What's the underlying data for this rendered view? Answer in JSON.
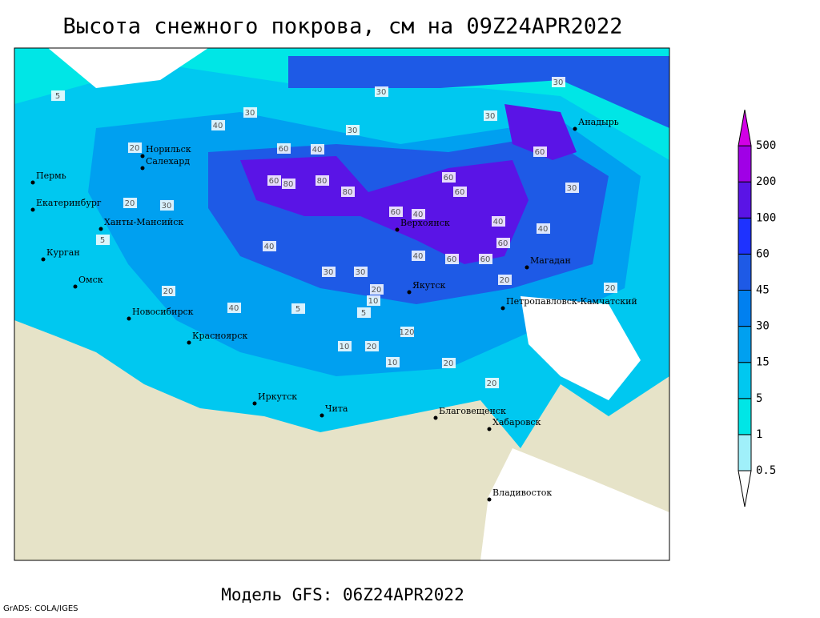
{
  "title": "Высота снежного покрова, см на 09Z24APR2022",
  "subtitle": "Модель GFS: 06Z24APR2022",
  "credit": "GrADS: COLA/IGES",
  "colorbar": {
    "levels": [
      0.5,
      1,
      5,
      15,
      30,
      45,
      60,
      100,
      200,
      500
    ],
    "colors": [
      "#ffffff",
      "#a0f0fa",
      "#00e6e6",
      "#00c8f0",
      "#00a0f0",
      "#0080f0",
      "#1e5ae6",
      "#1e32ff",
      "#5a14e6",
      "#a000e6",
      "#d200e6"
    ]
  },
  "cities": [
    "Норильск",
    "Салехард",
    "Пермь",
    "Екатеринбург",
    "Ханты-Мансийск",
    "Курган",
    "Омск",
    "Новосибирск",
    "Красноярск",
    "Иркутск",
    "Чита",
    "Верхоянск",
    "Якутск",
    "Магадан",
    "Анадырь",
    "Петропавловск-Камчатский",
    "Благовещенск",
    "Хабаровск",
    "Владивосток"
  ],
  "contour_labels": [
    5,
    30,
    30,
    30,
    30,
    30,
    40,
    20,
    60,
    40,
    80,
    60,
    80,
    80,
    60,
    60,
    60,
    40,
    60,
    30,
    40,
    60,
    40,
    60,
    30,
    40,
    60,
    40,
    30,
    5,
    20,
    20,
    5,
    10,
    20,
    120,
    10,
    20,
    20,
    10,
    20,
    5,
    20,
    40,
    30,
    20
  ]
}
